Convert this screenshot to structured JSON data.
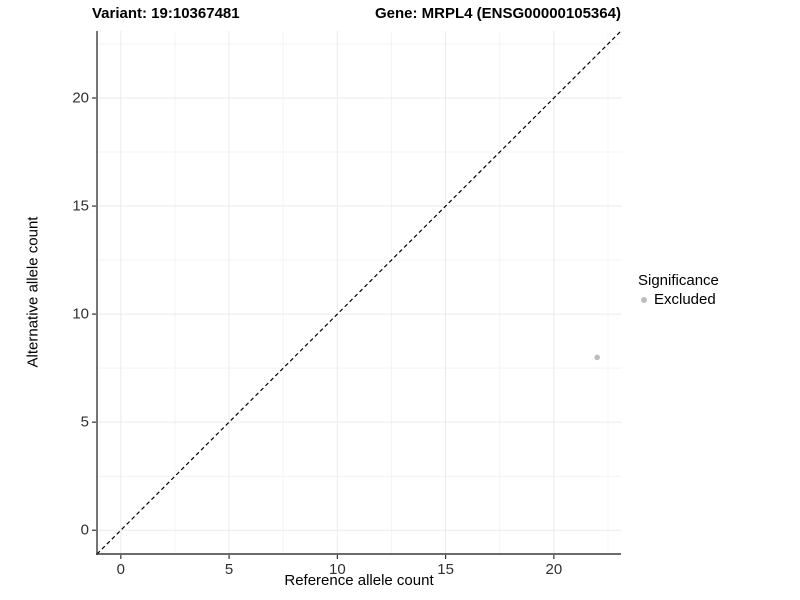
{
  "header": {
    "variant_title": "Variant: 19:10367481",
    "gene_title": "Gene: MRPL4 (ENSG00000105364)"
  },
  "chart_data": {
    "type": "scatter",
    "xlabel": "Reference allele count",
    "ylabel": "Alternative allele count",
    "xlim": [
      -1.1,
      23.1
    ],
    "ylim": [
      -1.1,
      23.1
    ],
    "x_ticks": [
      0,
      5,
      10,
      15,
      20
    ],
    "y_ticks": [
      0,
      5,
      10,
      15,
      20
    ],
    "x_minor_ticks": [
      2.5,
      7.5,
      12.5,
      17.5,
      22.5
    ],
    "y_minor_ticks": [
      2.5,
      7.5,
      12.5,
      17.5,
      22.5
    ],
    "grid": true,
    "points": [
      {
        "x": 22,
        "y": 8,
        "significance": "Excluded"
      }
    ],
    "identity_line": {
      "slope": 1,
      "intercept": 0,
      "style": "dashed",
      "color": "#000000"
    },
    "legend": {
      "title": "Significance",
      "position": "right",
      "entries": [
        {
          "label": "Excluded",
          "color": "#bdbdbd"
        }
      ]
    },
    "colors": {
      "point": "#bdbdbd",
      "grid_major": "#ebebeb",
      "grid_minor": "#f4f4f4",
      "axis_line": "#3a3a3a",
      "tick_mark": "#333333",
      "tick_label": "#303030",
      "background": "#ffffff"
    }
  }
}
